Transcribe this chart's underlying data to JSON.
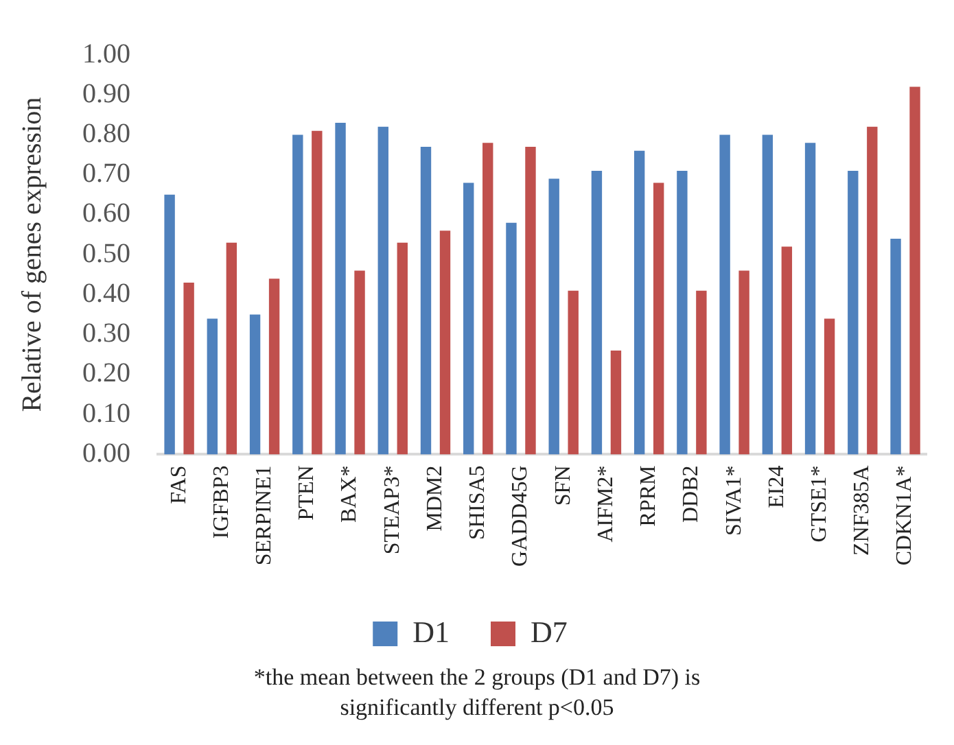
{
  "chart_data": {
    "type": "bar",
    "ylabel": "Relative of genes expression",
    "categories": [
      "FAS",
      "IGFBP3",
      "SERPINE1",
      "PTEN",
      "BAX*",
      "STEAP3*",
      "MDM2",
      "SHISA5",
      "GADD45G",
      "SFN",
      "AIFM2*",
      "RPRM",
      "DDB2",
      "SIVA1*",
      "EI24",
      "GTSE1*",
      "ZNF385A",
      "CDKN1A*"
    ],
    "series": [
      {
        "name": "D1",
        "color": "#4f81bd",
        "values": [
          0.65,
          0.34,
          0.35,
          0.8,
          0.83,
          0.82,
          0.77,
          0.68,
          0.58,
          0.69,
          0.71,
          0.76,
          0.71,
          0.8,
          0.8,
          0.78,
          0.71,
          0.54
        ]
      },
      {
        "name": "D7",
        "color": "#c0504d",
        "values": [
          0.43,
          0.53,
          0.44,
          0.81,
          0.46,
          0.53,
          0.56,
          0.78,
          0.77,
          0.41,
          0.26,
          0.68,
          0.41,
          0.46,
          0.52,
          0.34,
          0.82,
          0.92
        ]
      }
    ],
    "ylim": [
      0,
      1
    ],
    "yticks": [
      {
        "value": 0,
        "label": "0.00"
      },
      {
        "value": 0.1,
        "label": "0.10"
      },
      {
        "value": 0.2,
        "label": "0.20"
      },
      {
        "value": 0.3,
        "label": "0.30"
      },
      {
        "value": 0.4,
        "label": "0.40"
      },
      {
        "value": 0.5,
        "label": "0.50"
      },
      {
        "value": 0.6,
        "label": "0.60"
      },
      {
        "value": 0.7,
        "label": "0.70"
      },
      {
        "value": 0.8,
        "label": "0.80"
      },
      {
        "value": 0.9,
        "label": "0.90"
      },
      {
        "value": 1.0,
        "label": "1.00"
      }
    ],
    "grid": false,
    "legend": "bottom",
    "annotations": [
      "*the mean between the 2 groups (D1 and D7) is significantly different p<0.05"
    ]
  }
}
